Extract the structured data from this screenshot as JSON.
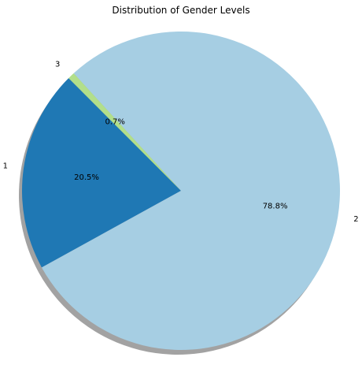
{
  "chart_data": {
    "type": "pie",
    "title": "Distribution of Gender Levels",
    "categories": [
      "1",
      "2",
      "3"
    ],
    "values": [
      20.5,
      78.8,
      0.7
    ],
    "percent_labels": [
      "20.5%",
      "78.8%",
      "0.7%"
    ],
    "colors": [
      "#1f78b4",
      "#a6cee3",
      "#b2df8a"
    ],
    "start_angle_deg": 135,
    "shadow": true,
    "legend": "none"
  }
}
